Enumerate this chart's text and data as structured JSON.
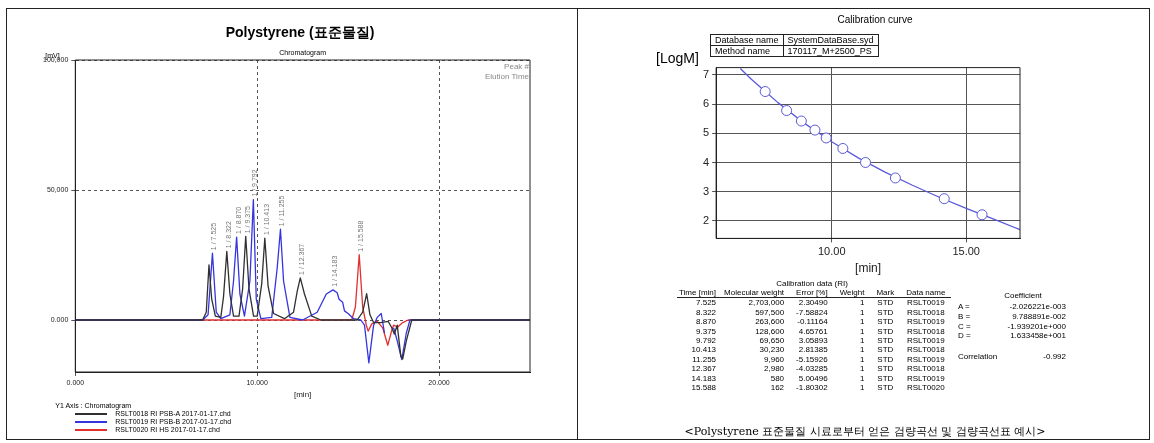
{
  "chart_data": [
    {
      "type": "line",
      "title": "Polystyrene (표준물질)",
      "subtitle": "Chromatogram",
      "xlabel": "[min]",
      "ylabel": "[mV]",
      "legend_title": "Y1 Axis : Chromatogram",
      "legend": "bottom left",
      "grid": true,
      "line_style": "solid",
      "marker": "none",
      "xlim": [
        0,
        25
      ],
      "xticks": [
        {
          "value": 0,
          "label": "0.000"
        },
        {
          "value": 10,
          "label": "10.000"
        },
        {
          "value": 20,
          "label": "20.000"
        }
      ],
      "ylim": [
        -20000,
        100000
      ],
      "yticks": [
        {
          "value": 0,
          "label": "0.000"
        },
        {
          "value": 50000,
          "label": "50,000"
        },
        {
          "value": 100000,
          "label": "100,000"
        }
      ],
      "annotations": [
        "Peak #",
        "Elution Time",
        {
          "text": "1 / 7.525",
          "x": 7.525,
          "y": 25700
        },
        {
          "text": "1 / 8.322",
          "x": 8.322,
          "y": 26400
        },
        {
          "text": "1 / 8.870",
          "x": 8.87,
          "y": 31900
        },
        {
          "text": "1 / 9.375",
          "x": 9.375,
          "y": 32200
        },
        {
          "text": "1 / 9.792",
          "x": 9.792,
          "y": 46300
        },
        {
          "text": "1 / 10.413",
          "x": 10.413,
          "y": 31500
        },
        {
          "text": "1 / 11.255",
          "x": 11.255,
          "y": 34900
        },
        {
          "text": "1 / 12.367",
          "x": 12.367,
          "y": 16200
        },
        {
          "text": "1 / 14.183",
          "x": 14.183,
          "y": 11600
        },
        {
          "text": "1 / 15.588",
          "x": 15.588,
          "y": 25100
        }
      ],
      "series": [
        {
          "name": "RSLT0018 RI PSB-A 2017-01-17.chd",
          "color": "#303030",
          "x": [
            0,
            6,
            7,
            7.2,
            7.35,
            7.5,
            7.7,
            8,
            8.15,
            8.33,
            8.5,
            8.7,
            9,
            9.2,
            9.37,
            9.55,
            9.8,
            10,
            10.25,
            10.42,
            10.6,
            10.9,
            11.5,
            12,
            12.2,
            12.37,
            12.6,
            13,
            13.5,
            15.5,
            15.8,
            16.02,
            16.2,
            16.4,
            16.8,
            17.2,
            17.4,
            17.54,
            17.7,
            17.9,
            18,
            18.2,
            18.5,
            25
          ],
          "values": [
            0,
            0,
            0,
            3000,
            21200,
            8000,
            1500,
            1000,
            9000,
            26400,
            10000,
            1500,
            1500,
            12000,
            32200,
            12000,
            1500,
            1500,
            14000,
            31500,
            13000,
            2500,
            500,
            3000,
            11000,
            16200,
            10000,
            1500,
            0,
            0,
            3000,
            10100,
            2000,
            -1000,
            -1000,
            -500,
            -3000,
            -5400,
            -2000,
            -14000,
            -15000,
            -8000,
            0,
            0
          ]
        },
        {
          "name": "RSLT0019 RI PSB-B 2017-01-17.chd",
          "color": "#3535e0",
          "x": [
            0,
            7,
            7.3,
            7.54,
            7.75,
            8,
            8.5,
            8.7,
            8.87,
            9.05,
            9.3,
            9.6,
            9.79,
            9.95,
            10.2,
            10.8,
            11.1,
            11.28,
            11.45,
            11.8,
            12.5,
            13.3,
            13.8,
            14.17,
            14.4,
            14.5,
            14.7,
            14.8,
            15,
            15.3,
            15.7,
            15.9,
            16.14,
            16.4,
            16.6,
            16.82,
            17,
            17.1,
            17.3,
            17.5,
            17.7,
            17.95,
            18.2,
            18.4,
            25
          ],
          "values": [
            0,
            0,
            2000,
            25700,
            3000,
            500,
            2000,
            15000,
            31900,
            10000,
            1500,
            15000,
            46300,
            8000,
            500,
            1000,
            20000,
            34900,
            15000,
            1000,
            0,
            3000,
            10000,
            11600,
            10500,
            8000,
            6800,
            3500,
            2500,
            500,
            0,
            -2000,
            -16500,
            -2000,
            1000,
            2500,
            -5000,
            null,
            null,
            -3000,
            -8000,
            -15200,
            -5000,
            0,
            0
          ]
        },
        {
          "name": "RSLT0020 RI HS 2017-01-17.chd",
          "color": "#e03030",
          "x": [
            0,
            15.2,
            15.4,
            15.61,
            15.8,
            16,
            16.1,
            16.3,
            16.6,
            16.9,
            17.18,
            17.4,
            17.5,
            17.73,
            18,
            18.3,
            25
          ],
          "values": [
            0,
            0,
            5000,
            25100,
            5000,
            -2000,
            -4300,
            -1500,
            -500,
            -3000,
            -9700,
            -4000,
            -2000,
            -2700,
            -1000,
            0,
            0
          ]
        }
      ]
    },
    {
      "type": "scatter",
      "title": "Calibration curve",
      "xlabel": "[min]",
      "ylabel": "[LogM]",
      "grid": true,
      "xlim": [
        5.7,
        17
      ],
      "xticks": [
        {
          "value": 10,
          "label": "10.00"
        },
        {
          "value": 15,
          "label": "15.00"
        }
      ],
      "ylim": [
        1.4,
        7.25
      ],
      "yticks": [
        2,
        3,
        4,
        5,
        6,
        7
      ],
      "annotations": [
        "Database name",
        "SystemDataBase.syd",
        "Method name",
        "170117_M+2500_PS",
        "Calibration data (RI)",
        "Time [min]",
        "Molecular weight",
        "Error [%]",
        "Weight",
        "Mark",
        "Data name",
        "7.525",
        "2,703,000",
        "2.30490",
        "1",
        "STD",
        "RSLT0019",
        "8.322",
        "597,500",
        "-7.58824",
        "1",
        "STD",
        "RSLT0018",
        "8.870",
        "263,600",
        "-0.11164",
        "1",
        "STD",
        "RSLT0019",
        "9.375",
        "128,600",
        "4.65761",
        "1",
        "STD",
        "RSLT0018",
        "9.792",
        "69,650",
        "3.05893",
        "1",
        "STD",
        "RSLT0019",
        "10.413",
        "30,230",
        "2.81385",
        "1",
        "STD",
        "RSLT0018",
        "11.255",
        "9,960",
        "-5.15926",
        "1",
        "STD",
        "RSLT0019",
        "12.367",
        "2,980",
        "-4.03285",
        "1",
        "STD",
        "RSLT0018",
        "14.183",
        "580",
        "5.00496",
        "1",
        "STD",
        "RSLT0019",
        "15.588",
        "162",
        "-1.80302",
        "1",
        "STD",
        "RSLT0020",
        "Coefficient",
        "A =",
        "-2.026221e-003",
        "B =",
        "9.788891e-002",
        "C =",
        "-1.939201e+000",
        "D =",
        "1.633458e+001",
        "Correlation",
        "-0.992",
        "<Polystyrene 표준물질 시료로부터 얻은 검량곡선 및 검량곡선표 예시>"
      ],
      "series": [
        {
          "type": "line",
          "marker": "none",
          "color": "#5a5ad8",
          "x": [
            6.6,
            7,
            8,
            9,
            10,
            11,
            12,
            13,
            14,
            15,
            16,
            17
          ],
          "values": [
            7.22,
            6.86,
            6.05,
            5.33,
            4.71,
            4.15,
            3.66,
            3.22,
            2.81,
            2.43,
            2.07,
            1.7
          ]
        },
        {
          "marker": "circle",
          "color": "#5a5ad8",
          "x": [
            7.525,
            8.322,
            8.87,
            9.375,
            9.792,
            10.413,
            11.255,
            12.367,
            14.183,
            15.588
          ],
          "values": [
            6.43,
            5.78,
            5.42,
            5.11,
            4.84,
            4.48,
            4.0,
            3.47,
            2.76,
            2.21
          ]
        }
      ]
    }
  ]
}
